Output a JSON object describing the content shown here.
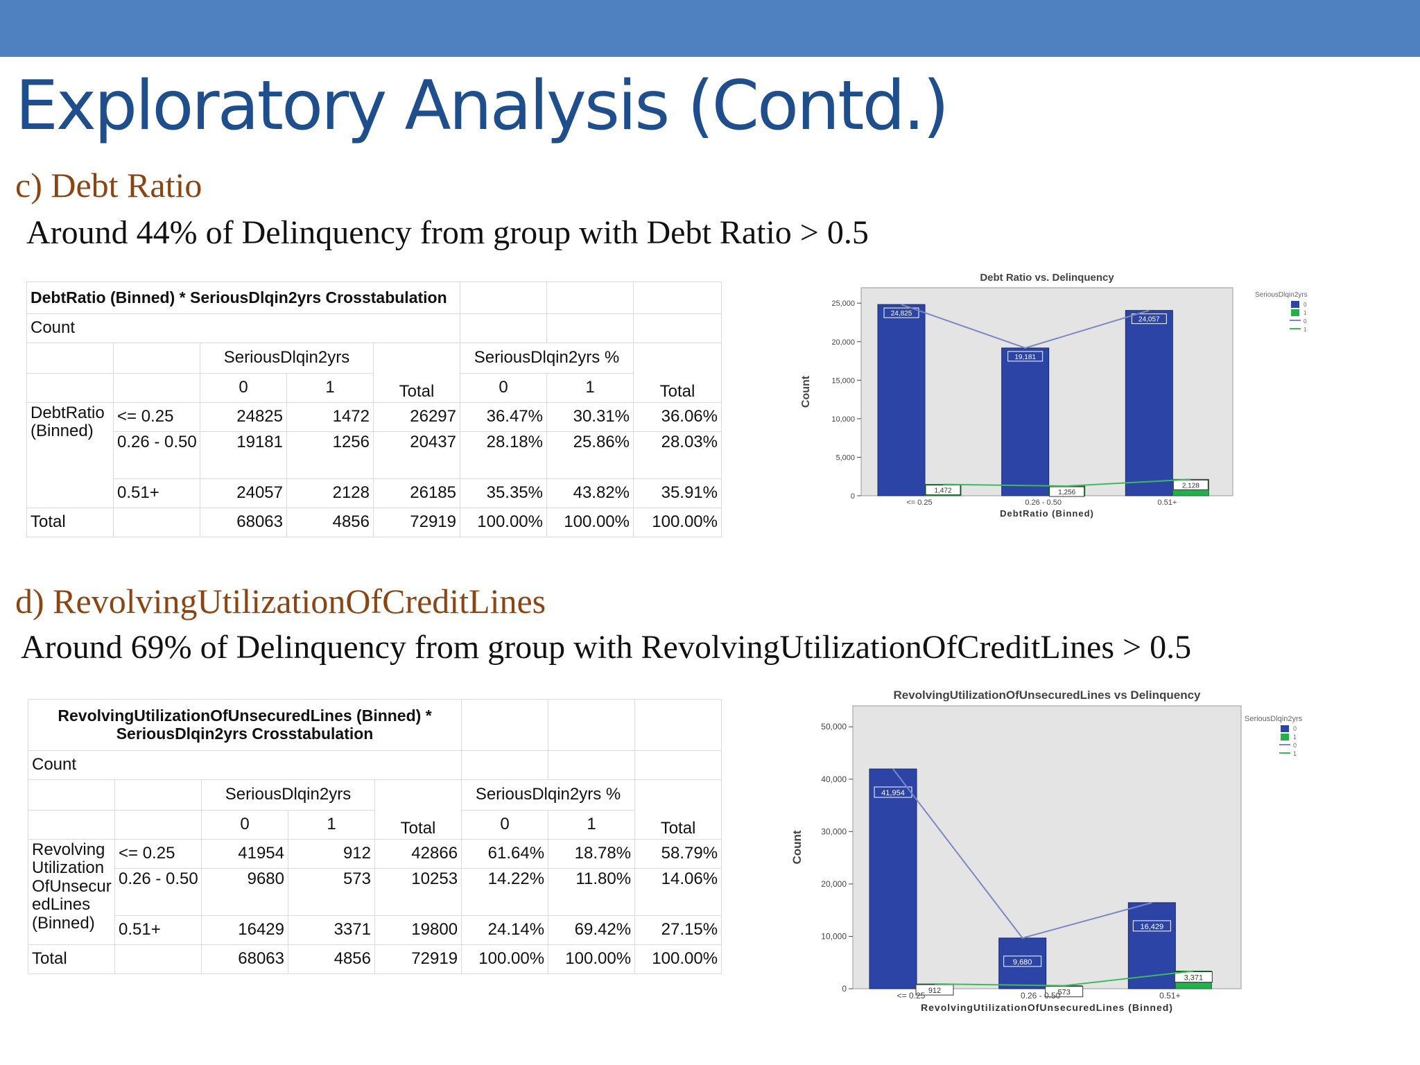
{
  "slide": {
    "title": "Exploratory Analysis (Contd.)",
    "colors": {
      "topbar": "#4f81c1",
      "title": "#1f4e8c",
      "section": "#8b4513",
      "bar0": "#2c44a6",
      "bar1": "#21b04a",
      "line0": "#7a87c4",
      "line1": "#3dba5a",
      "plotbg": "#e4e4e4"
    }
  },
  "sec_c": {
    "heading": "c) Debt Ratio",
    "note": "Around 44% of Delinquency from group with Debt Ratio > 0.5"
  },
  "sec_d": {
    "heading": "d) RevolvingUtilizationOfCreditLines",
    "note": "Around 69% of Delinquency from group with RevolvingUtilizationOfCreditLines > 0.5"
  },
  "table1": {
    "title": "DebtRatio (Binned) * SeriousDlqin2yrs Crosstabulation",
    "count": "Count",
    "group": "SeriousDlqin2yrs",
    "group_pct": "SeriousDlqin2yrs %",
    "col0": "0",
    "col1": "1",
    "total": "Total",
    "rowvar": "DebtRatio (Binned)",
    "rows": [
      {
        "label": "<= 0.25",
        "c0": "24825",
        "c1": "1472",
        "t": "26297",
        "p0": "36.47%",
        "p1": "30.31%",
        "pt": "36.06%"
      },
      {
        "label": "0.26 - 0.50",
        "c0": "19181",
        "c1": "1256",
        "t": "20437",
        "p0": "28.18%",
        "p1": "25.86%",
        "pt": "28.03%"
      },
      {
        "label": "0.51+",
        "c0": "24057",
        "c1": "2128",
        "t": "26185",
        "p0": "35.35%",
        "p1": "43.82%",
        "pt": "35.91%"
      }
    ],
    "total_row": {
      "label": "Total",
      "c0": "68063",
      "c1": "4856",
      "t": "72919",
      "p0": "100.00%",
      "p1": "100.00%",
      "pt": "100.00%"
    }
  },
  "table2": {
    "title": "RevolvingUtilizationOfUnsecuredLines (Binned) * SeriousDlqin2yrs Crosstabulation",
    "count": "Count",
    "group": "SeriousDlqin2yrs",
    "group_pct": "SeriousDlqin2yrs %",
    "col0": "0",
    "col1": "1",
    "total": "Total",
    "rowvar": "Revolving Utilization OfUnsecur edLines (Binned)",
    "rows": [
      {
        "label": "<= 0.25",
        "c0": "41954",
        "c1": "912",
        "t": "42866",
        "p0": "61.64%",
        "p1": "18.78%",
        "pt": "58.79%"
      },
      {
        "label": "0.26 - 0.50",
        "c0": "9680",
        "c1": "573",
        "t": "10253",
        "p0": "14.22%",
        "p1": "11.80%",
        "pt": "14.06%"
      },
      {
        "label": "0.51+",
        "c0": "16429",
        "c1": "3371",
        "t": "19800",
        "p0": "24.14%",
        "p1": "69.42%",
        "pt": "27.15%"
      }
    ],
    "total_row": {
      "label": "Total",
      "c0": "68063",
      "c1": "4856",
      "t": "72919",
      "p0": "100.00%",
      "p1": "100.00%",
      "pt": "100.00%"
    }
  },
  "chart_data": [
    {
      "type": "bar",
      "title": "Debt Ratio vs. Delinquency",
      "xlabel": "DebtRatio (Binned)",
      "ylabel": "Count",
      "categories": [
        "<= 0.25",
        "0.26 - 0.50",
        "0.51+"
      ],
      "series": [
        {
          "name": "0",
          "values": [
            24825,
            19181,
            24057
          ],
          "labels": [
            "24,825",
            "19,181",
            "24,057"
          ]
        },
        {
          "name": "1",
          "values": [
            1472,
            1256,
            2128
          ],
          "labels": [
            "1,472",
            "1,256",
            "2,128"
          ]
        }
      ],
      "lines": [
        "0",
        "1"
      ],
      "legend_title": "SeriousDlqin2yrs",
      "ylim": [
        0,
        27000
      ],
      "yticks": [
        0,
        5000,
        10000,
        15000,
        20000,
        25000
      ],
      "yticklabels": [
        "0",
        "5,000",
        "10,000",
        "15,000",
        "20,000",
        "25,000"
      ],
      "grid": false,
      "legend": "top-right"
    },
    {
      "type": "bar",
      "title": "RevolvingUtilizationOfUnsecuredLines vs Delinquency",
      "xlabel": "RevolvingUtilizationOfUnsecuredLines (Binned)",
      "ylabel": "Count",
      "categories": [
        "<= 0.25",
        "0.26 - 0.50",
        "0.51+"
      ],
      "series": [
        {
          "name": "0",
          "values": [
            41954,
            9680,
            16429
          ],
          "labels": [
            "41,954",
            "9,680",
            "16,429"
          ]
        },
        {
          "name": "1",
          "values": [
            912,
            573,
            3371
          ],
          "labels": [
            "912",
            "573",
            "3,371"
          ]
        }
      ],
      "lines": [
        "0",
        "1"
      ],
      "legend_title": "SeriousDlqin2yrs",
      "ylim": [
        0,
        54000
      ],
      "yticks": [
        0,
        10000,
        20000,
        30000,
        40000,
        50000
      ],
      "yticklabels": [
        "0",
        "10,000",
        "20,000",
        "30,000",
        "40,000",
        "50,000"
      ],
      "grid": false,
      "legend": "top-right"
    }
  ]
}
